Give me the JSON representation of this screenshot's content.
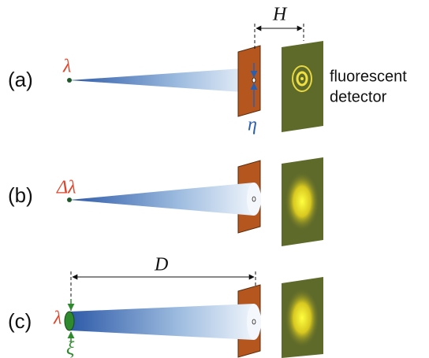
{
  "panels": [
    {
      "label": "(a)",
      "source": "λ"
    },
    {
      "label": "(b)",
      "source": "Δλ"
    },
    {
      "label": "(c)",
      "source": "λ"
    }
  ],
  "annotations": {
    "H": "H",
    "eta": "η",
    "D": "D",
    "xi": "ξ"
  },
  "detector_label": [
    "fluorescent",
    "detector"
  ]
}
